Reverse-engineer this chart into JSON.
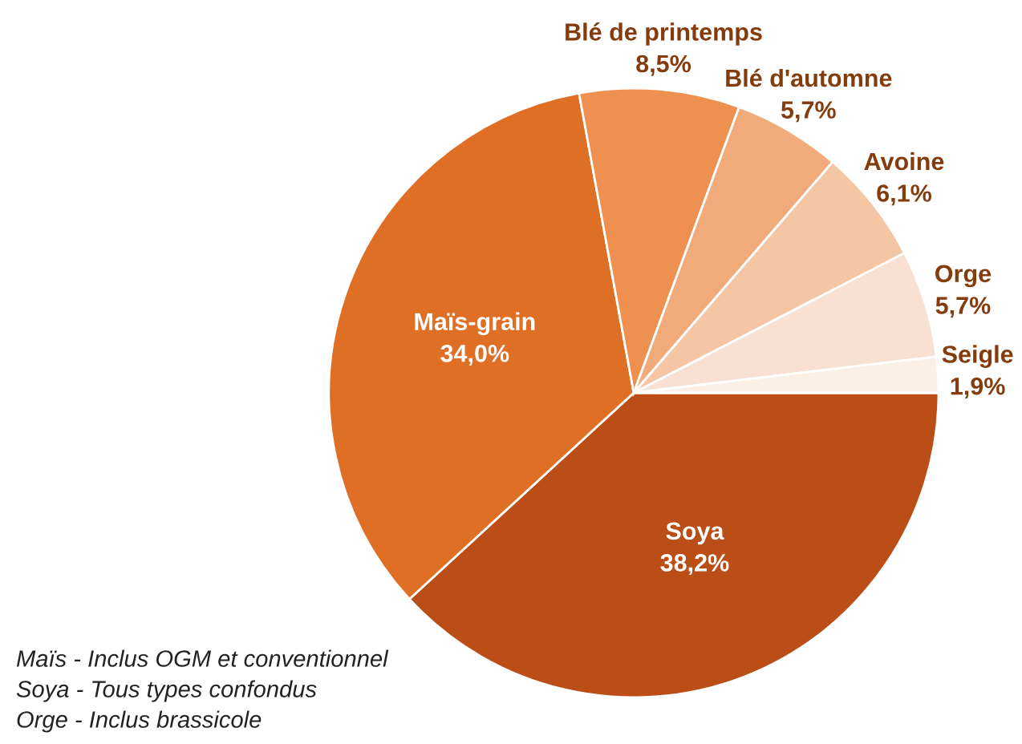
{
  "chart_data": {
    "type": "pie",
    "categories": [
      "Soya",
      "Maïs-grain",
      "Blé de printemps",
      "Blé d'automne",
      "Avoine",
      "Orge",
      "Seigle"
    ],
    "values": [
      38.2,
      34.0,
      8.5,
      5.7,
      6.1,
      5.7,
      1.9
    ],
    "value_labels": [
      "38,2%",
      "34,0%",
      "8,5%",
      "5,7%",
      "6,1%",
      "5,7%",
      "1,9%"
    ],
    "colors": [
      "#bb4e17",
      "#e06f26",
      "#ee9050",
      "#f1aa7a",
      "#f4c6a4",
      "#f8e1d2",
      "#fbefe6"
    ],
    "annotations": [
      "Maïs - Inclus OGM et conventionnel",
      "Soya - Tous types confondus",
      "Orge - Inclus brassicole"
    ]
  }
}
